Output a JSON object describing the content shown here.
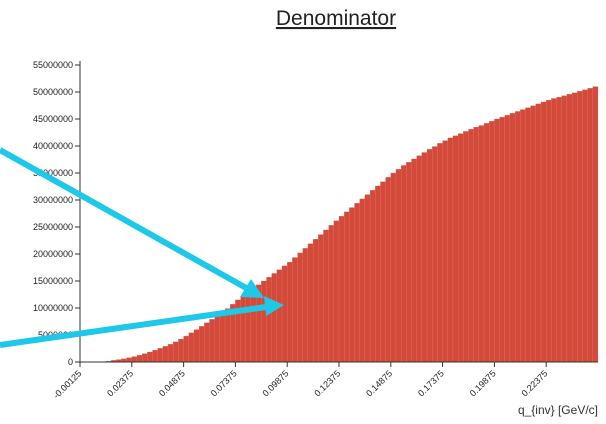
{
  "chart_data": {
    "type": "histogram",
    "title": "Denominator",
    "x_label": "q_{inv} [GeV/c]",
    "color": "#d3493a",
    "bins": [
      -0.00125,
      0.00125,
      0.00375,
      0.00625,
      0.00875,
      0.01125,
      0.01375,
      0.01625,
      0.01875,
      0.02125,
      0.02375,
      0.02625,
      0.02875,
      0.03125,
      0.03375,
      0.03625,
      0.03875,
      0.04125,
      0.04375,
      0.04625,
      0.04875,
      0.05125,
      0.05375,
      0.05625,
      0.05875,
      0.06125,
      0.06375,
      0.06625,
      0.06875,
      0.07125,
      0.07375,
      0.07625,
      0.07875,
      0.08125,
      0.08375,
      0.08625,
      0.08875,
      0.09125,
      0.09375,
      0.09625,
      0.09875,
      0.10125,
      0.10375,
      0.10625,
      0.10875,
      0.11125,
      0.11375,
      0.11625,
      0.11875,
      0.12125,
      0.12375,
      0.12625,
      0.12875,
      0.13125,
      0.13375,
      0.13625,
      0.13875,
      0.14125,
      0.14375,
      0.14625,
      0.14875,
      0.15125,
      0.15375,
      0.15625,
      0.15875,
      0.16125,
      0.16375,
      0.16625,
      0.16875,
      0.17125,
      0.17375,
      0.17625,
      0.17875,
      0.18125,
      0.18375,
      0.18625,
      0.18875,
      0.19125,
      0.19375,
      0.19625,
      0.19875,
      0.20125,
      0.20375,
      0.20625,
      0.20875,
      0.21125,
      0.21375,
      0.21625,
      0.21875,
      0.22125,
      0.22375,
      0.22625,
      0.22875,
      0.23125,
      0.23375,
      0.23625,
      0.23875,
      0.24125,
      0.24375,
      0.24625,
      0.24875
    ],
    "values": [
      0,
      0,
      0,
      0,
      50000,
      150000,
      300000,
      450000,
      600000,
      800000,
      1000000,
      1250000,
      1550000,
      1850000,
      2200000,
      2550000,
      2900000,
      3300000,
      3750000,
      4250000,
      4800000,
      5400000,
      6000000,
      6600000,
      7250000,
      7900000,
      8550000,
      9200000,
      9900000,
      10700000,
      11500000,
      12200000,
      12900000,
      13600000,
      14300000,
      15000000,
      15700000,
      16400000,
      17100000,
      17800000,
      18500000,
      19350000,
      20200000,
      21050000,
      21900000,
      22750000,
      23600000,
      24450000,
      25300000,
      26150000,
      27000000,
      27800000,
      28600000,
      29400000,
      30200000,
      31000000,
      31800000,
      32600000,
      33400000,
      34200000,
      35000000,
      35700000,
      36400000,
      37000000,
      37600000,
      38200000,
      38800000,
      39400000,
      39900000,
      40500000,
      41000000,
      41500000,
      41900000,
      42300000,
      42700000,
      43100000,
      43500000,
      43800000,
      44200000,
      44600000,
      45000000,
      45350000,
      45700000,
      46050000,
      46400000,
      46750000,
      47100000,
      47450000,
      47800000,
      48150000,
      48500000,
      48800000,
      49050000,
      49300000,
      49600000,
      49850000,
      50150000,
      50400000,
      50700000,
      51000000
    ],
    "xlim": [
      -0.00125,
      0.24875
    ],
    "xticks": [
      -0.00125,
      0.02375,
      0.04875,
      0.07375,
      0.09875,
      0.12375,
      0.14875,
      0.17375,
      0.19875,
      0.22375
    ],
    "ylim": [
      0,
      55000000
    ],
    "yticks": [
      0,
      5000000,
      10000000,
      15000000,
      20000000,
      25000000,
      30000000,
      35000000,
      40000000,
      45000000,
      50000000,
      55000000
    ]
  }
}
